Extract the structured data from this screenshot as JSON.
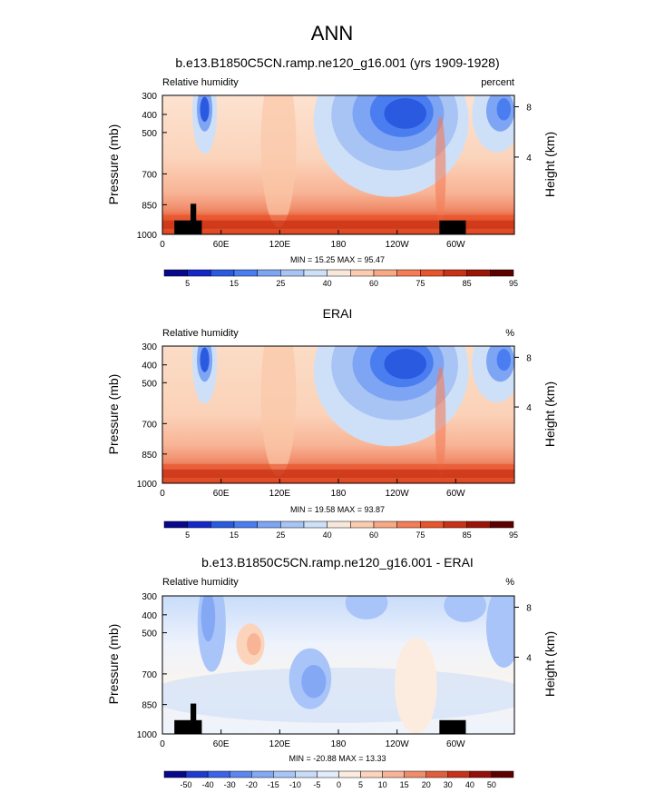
{
  "figure": {
    "title": "ANN"
  },
  "colors": {
    "abs_scale": [
      "#08088c",
      "#1428c8",
      "#2a5ae0",
      "#4a7ef0",
      "#7ea4f4",
      "#a8c4f4",
      "#cee0f8",
      "#f8e8dc",
      "#fcccb0",
      "#f8a884",
      "#f47c56",
      "#e8542c",
      "#c83216",
      "#9c1408",
      "#5e0000"
    ],
    "diff_scale": [
      "#08088c",
      "#1e3cd0",
      "#3c64e8",
      "#5c86f0",
      "#84a8f4",
      "#a8c4f8",
      "#c8dcfa",
      "#e2ecfc",
      "#fcece0",
      "#fcd4bc",
      "#f8b496",
      "#f08c6a",
      "#e05e3c",
      "#c8321a",
      "#961008",
      "#5e0000"
    ],
    "land": "#000000"
  },
  "chart_data": [
    {
      "type": "heatmap",
      "title": "b.e13.B1850C5CN.ramp.ne120_g16.001 (yrs 1909-1928)",
      "left_label": "Relative humidity",
      "right_label": "percent",
      "ylabel": "Pressure (mb)",
      "y2label": "Height (km)",
      "xticks": [
        "0",
        "60E",
        "120E",
        "180",
        "120W",
        "60W"
      ],
      "yticks": [
        "300",
        "400",
        "500",
        "700",
        "850",
        "1000"
      ],
      "y2ticks": [
        "8",
        "4"
      ],
      "stats": "MIN =  15.25  MAX =  95.47",
      "colorbar_labels": [
        "5",
        "15",
        "25",
        "40",
        "60",
        "75",
        "85",
        "95"
      ],
      "xlim": [
        0,
        360
      ],
      "ylim": [
        1000,
        300
      ],
      "scale": "abs"
    },
    {
      "type": "heatmap",
      "title": "ERAI",
      "left_label": "Relative humidity",
      "right_label": "%",
      "ylabel": "Pressure (mb)",
      "y2label": "Height (km)",
      "xticks": [
        "0",
        "60E",
        "120E",
        "180",
        "120W",
        "60W"
      ],
      "yticks": [
        "300",
        "400",
        "500",
        "700",
        "850",
        "1000"
      ],
      "y2ticks": [
        "8",
        "4"
      ],
      "stats": "MIN =  19.58  MAX =  93.87",
      "colorbar_labels": [
        "5",
        "15",
        "25",
        "40",
        "60",
        "75",
        "85",
        "95"
      ],
      "xlim": [
        0,
        360
      ],
      "ylim": [
        1000,
        300
      ],
      "scale": "abs"
    },
    {
      "type": "heatmap",
      "title": "b.e13.B1850C5CN.ramp.ne120_g16.001 - ERAI",
      "left_label": "Relative humidity",
      "right_label": "%",
      "ylabel": "Pressure (mb)",
      "y2label": "Height (km)",
      "xticks": [
        "0",
        "60E",
        "120E",
        "180",
        "120W",
        "60W"
      ],
      "yticks": [
        "300",
        "400",
        "500",
        "700",
        "850",
        "1000"
      ],
      "y2ticks": [
        "8",
        "4"
      ],
      "stats": "MIN = -20.88  MAX =  13.33",
      "colorbar_labels": [
        "-50",
        "-40",
        "-30",
        "-20",
        "-15",
        "-10",
        "-5",
        "0",
        "5",
        "10",
        "15",
        "20",
        "30",
        "40",
        "50"
      ],
      "xlim": [
        0,
        360
      ],
      "ylim": [
        1000,
        300
      ],
      "scale": "diff"
    }
  ]
}
